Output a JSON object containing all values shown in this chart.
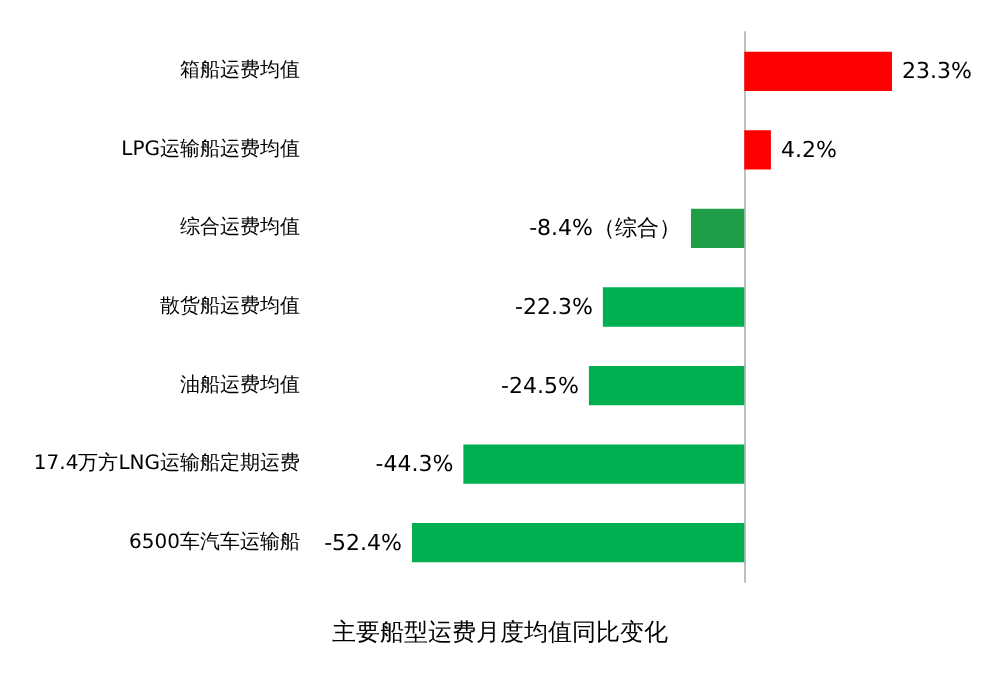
{
  "chart_data": {
    "type": "bar",
    "orientation": "horizontal",
    "title": "主要船型运费月度均值同比变化",
    "categories": [
      "箱船运费均值",
      "LPG运输船运费均值",
      "综合运费均值",
      "散货船运费均值",
      "油船运费均值",
      "17.4万方LNG运输船定期运费",
      "6500车汽车运输船"
    ],
    "values": [
      23.3,
      4.2,
      -8.4,
      -22.3,
      -24.5,
      -44.3,
      -52.4
    ],
    "colors": [
      "#ff0000",
      "#ff0000",
      "#1e9e46",
      "#00b050",
      "#00b050",
      "#00b050",
      "#00b050"
    ],
    "value_labels": [
      "23.3%",
      "4.2%",
      "-8.4%（综合）",
      "-22.3%",
      "-24.5%",
      "-44.3%",
      "-52.4%"
    ],
    "tick_labels": "y",
    "grid": false
  }
}
